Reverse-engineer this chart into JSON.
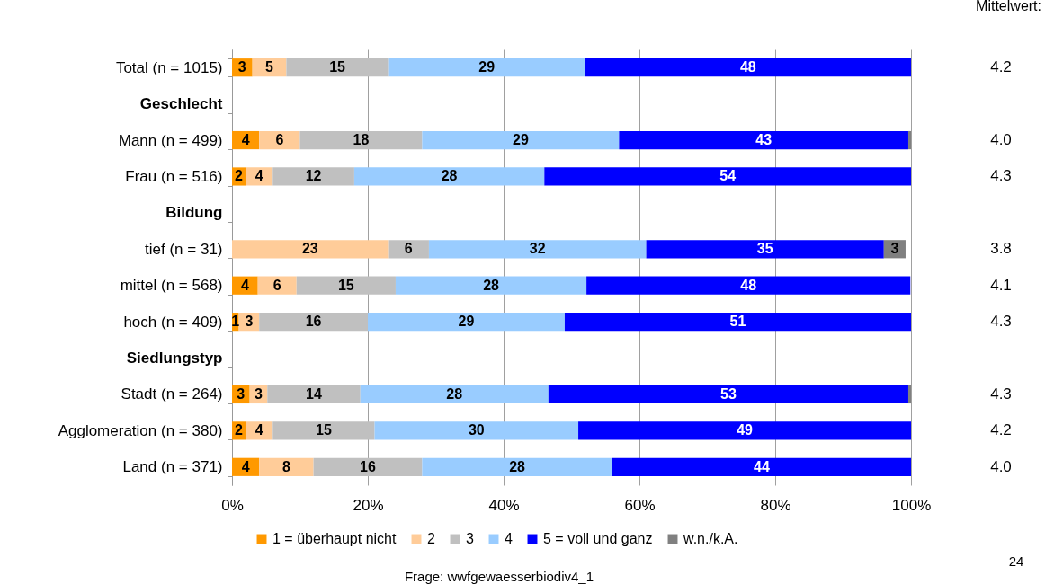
{
  "chart_data": {
    "type": "bar",
    "orientation": "horizontal",
    "stacked": true,
    "categories": [
      "Total (n = 1015)",
      "Geschlecht",
      "Mann (n = 499)",
      "Frau (n = 516)",
      "Bildung",
      "tief (n = 31)",
      "mittel (n = 568)",
      "hoch (n = 409)",
      "Siedlungstyp",
      "Stadt (n = 264)",
      "Agglomeration (n = 380)",
      "Land (n = 371)"
    ],
    "series": [
      {
        "name": "1 = überhaupt nicht",
        "color": "#ff9900",
        "values": [
          3,
          null,
          4,
          2,
          null,
          null,
          3.8,
          1,
          null,
          2.6,
          2,
          4
        ],
        "value_labels": [
          "3",
          null,
          "4",
          "2",
          null,
          null,
          "4",
          "1",
          null,
          "3",
          "2",
          "4"
        ]
      },
      {
        "name": "2",
        "color": "#ffcc99",
        "values": [
          5,
          null,
          6,
          4,
          null,
          23,
          5.7,
          3,
          null,
          2.6,
          4,
          8
        ],
        "value_labels": [
          "5",
          null,
          "6",
          "4",
          null,
          "23",
          "6",
          "3",
          null,
          "3",
          "4",
          "8"
        ]
      },
      {
        "name": "3",
        "color": "#c0c0c0",
        "values": [
          15,
          null,
          18,
          12,
          null,
          6,
          14.6,
          16,
          null,
          13.7,
          15,
          16
        ],
        "value_labels": [
          "15",
          null,
          "18",
          "12",
          null,
          "6",
          "15",
          "16",
          null,
          "14",
          "15",
          "16"
        ]
      },
      {
        "name": "4",
        "color": "#99ccff",
        "values": [
          29,
          null,
          29,
          28,
          null,
          32,
          28.1,
          29,
          null,
          27.7,
          30,
          28
        ],
        "value_labels": [
          "29",
          null,
          "29",
          "28",
          null,
          "32",
          "28",
          "29",
          null,
          "28",
          "30",
          "28"
        ]
      },
      {
        "name": "5 = voll und ganz",
        "color": "#0000ff",
        "values": [
          48,
          null,
          42.6,
          54,
          null,
          35,
          47.7,
          51,
          null,
          53,
          49,
          44
        ],
        "value_labels": [
          "48",
          null,
          "43",
          "54",
          null,
          "35",
          "48",
          "51",
          null,
          "53",
          "49",
          "44"
        ]
      },
      {
        "name": "w.n./k.A.",
        "color": "#808080",
        "values": [
          null,
          null,
          0.4,
          null,
          null,
          3.2,
          null,
          null,
          null,
          0.4,
          null,
          null
        ],
        "value_labels": [
          null,
          null,
          null,
          null,
          null,
          "3",
          null,
          null,
          null,
          null,
          null,
          null
        ]
      }
    ],
    "xlim": [
      0,
      100
    ],
    "xticks": [
      {
        "value": 0,
        "label": "0%"
      },
      {
        "value": 20,
        "label": "20%"
      },
      {
        "value": 40,
        "label": "40%"
      },
      {
        "value": 60,
        "label": "60%"
      },
      {
        "value": 80,
        "label": "80%"
      },
      {
        "value": 100,
        "label": "100%"
      }
    ],
    "grid": "x",
    "legend": "bottom",
    "y2label": "Mittelwert:",
    "y2_categories": [
      "4.2",
      null,
      "4.0",
      "4.3",
      null,
      "3.8",
      "4.1",
      "4.3",
      null,
      "4.3",
      "4.2",
      "4.0"
    ],
    "annotations": [
      "Frage: wwfgewaesserbiodiv4_1",
      "24"
    ]
  }
}
